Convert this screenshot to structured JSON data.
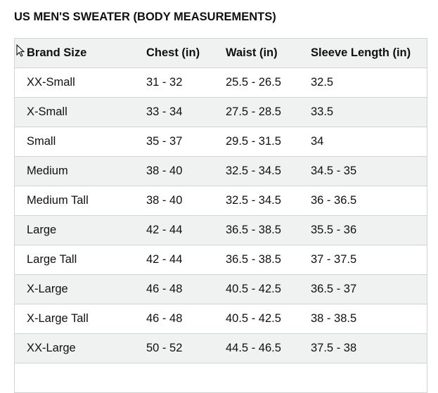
{
  "header": {
    "title": "US MEN'S SWEATER (BODY MEASUREMENTS)"
  },
  "table": {
    "columns": [
      "Brand Size",
      "Chest (in)",
      "Waist (in)",
      "Sleeve Length (in)"
    ],
    "rows": [
      [
        "XX-Small",
        "31 - 32",
        "25.5 - 26.5",
        "32.5"
      ],
      [
        "X-Small",
        "33 - 34",
        "27.5 - 28.5",
        "33.5"
      ],
      [
        "Small",
        "35 - 37",
        "29.5 - 31.5",
        "34"
      ],
      [
        "Medium",
        "38 - 40",
        "32.5 - 34.5",
        "34.5 - 35"
      ],
      [
        "Medium Tall",
        "38 - 40",
        "32.5 - 34.5",
        "36 - 36.5"
      ],
      [
        "Large",
        "42 - 44",
        "36.5 - 38.5",
        "35.5 - 36"
      ],
      [
        "Large Tall",
        "42 - 44",
        "36.5 - 38.5",
        "37 - 37.5"
      ],
      [
        "X-Large",
        "46 - 48",
        "40.5 - 42.5",
        "36.5 - 37"
      ],
      [
        "X-Large Tall",
        "46 - 48",
        "40.5 - 42.5",
        "38 - 38.5"
      ],
      [
        "XX-Large",
        "50 - 52",
        "44.5 - 46.5",
        "37.5 - 38"
      ]
    ]
  }
}
